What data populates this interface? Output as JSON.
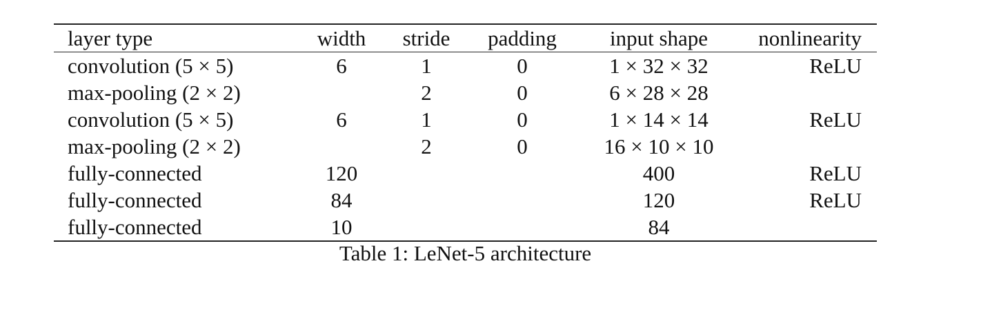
{
  "table": {
    "headers": [
      "layer type",
      "width",
      "stride",
      "padding",
      "input shape",
      "nonlinearity"
    ],
    "rows": [
      [
        "convolution (5 × 5)",
        "6",
        "1",
        "0",
        "1 × 32 × 32",
        "ReLU"
      ],
      [
        "max-pooling (2 × 2)",
        "",
        "2",
        "0",
        "6 × 28 × 28",
        ""
      ],
      [
        "convolution (5 × 5)",
        "6",
        "1",
        "0",
        "1 × 14 × 14",
        "ReLU"
      ],
      [
        "max-pooling (2 × 2)",
        "",
        "2",
        "0",
        "16 × 10 × 10",
        ""
      ],
      [
        "fully-connected",
        "120",
        "",
        "",
        "400",
        "ReLU"
      ],
      [
        "fully-connected",
        "84",
        "",
        "",
        "120",
        "ReLU"
      ],
      [
        "fully-connected",
        "10",
        "",
        "",
        "84",
        ""
      ]
    ]
  },
  "caption": "Table 1: LeNet-5 architecture"
}
